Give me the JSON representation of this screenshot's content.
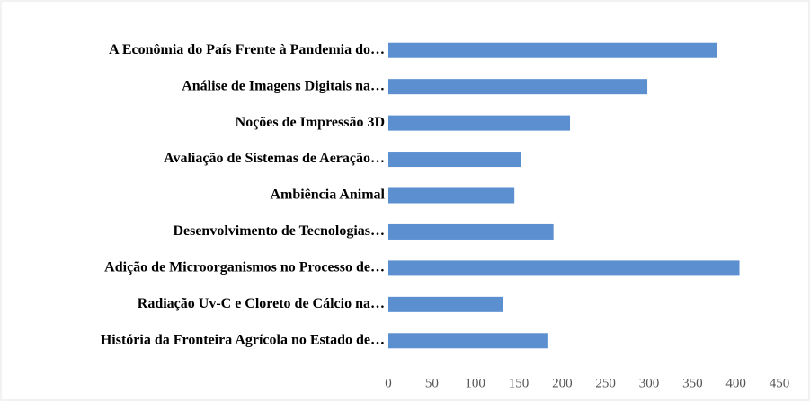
{
  "chart_data": {
    "type": "bar",
    "orientation": "horizontal",
    "categories": [
      "A Econômia do País Frente à Pandemia do…",
      "Análise de Imagens Digitais na…",
      "Noções de Impressão 3D",
      "Avaliação de Sistemas de Aeração…",
      "Ambiência Animal",
      "Desenvolvimento de Tecnologias…",
      "Adição de Microorganismos no Processo de…",
      "Radiação Uv-C e Cloreto de Cálcio na…",
      "História da Fronteira Agrícola no Estado de…"
    ],
    "values": [
      378,
      298,
      209,
      153,
      145,
      190,
      404,
      132,
      184
    ],
    "color": "#5b8fd0",
    "xlim": [
      0,
      450
    ],
    "xticks": [
      0,
      50,
      100,
      150,
      200,
      250,
      300,
      350,
      400,
      450
    ],
    "grid": false
  }
}
